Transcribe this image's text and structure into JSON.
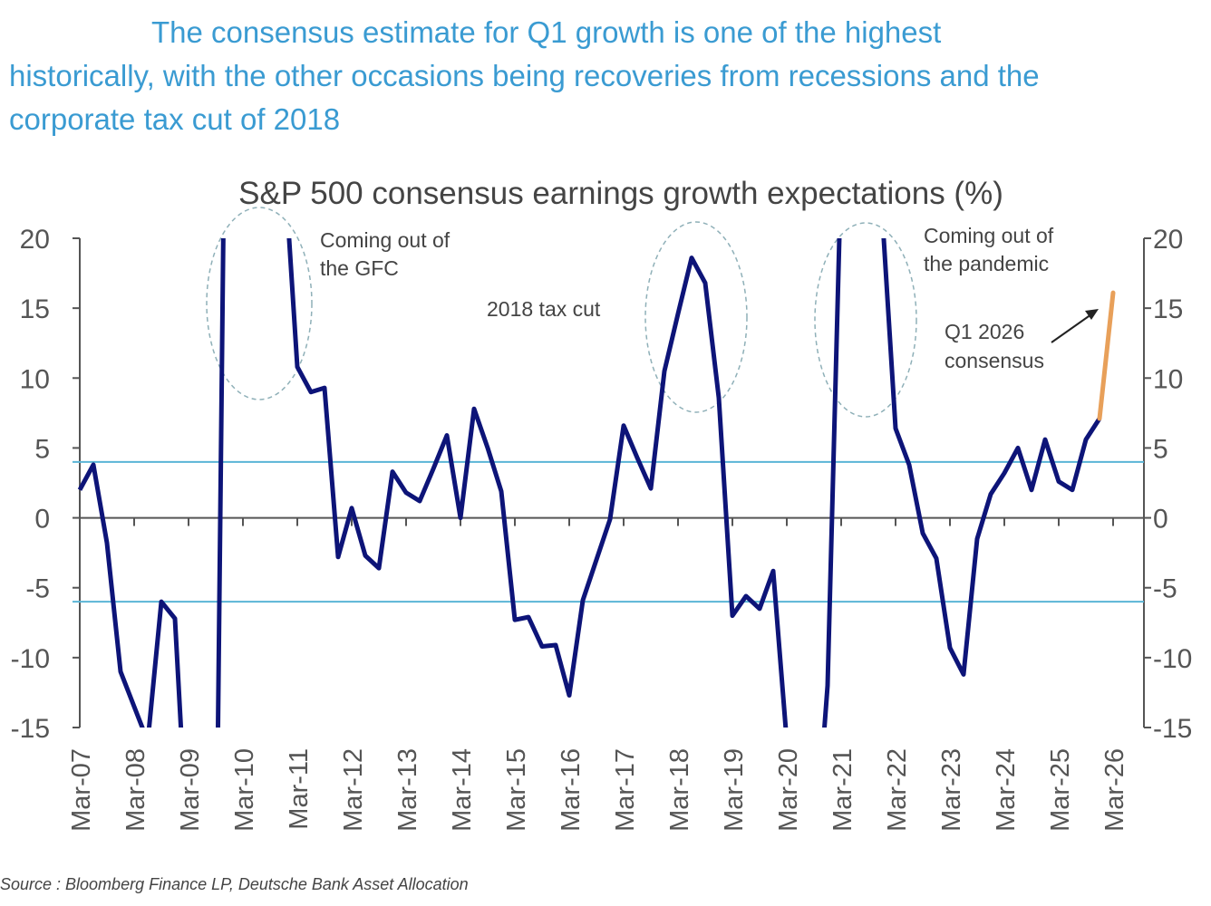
{
  "headline": [
    "The consensus estimate for Q1 growth is one of the highest",
    "historically, with the other occasions being recoveries from recessions and the",
    "corporate tax cut of 2018"
  ],
  "source": "Source : Bloomberg Finance LP, Deutsche Bank Asset Allocation",
  "chart_data": {
    "type": "line",
    "title": "S&P 500 consensus earnings growth expectations (%)",
    "xlabel": "",
    "ylabel": "",
    "ylim": [
      -15,
      20
    ],
    "yticks": [
      "20",
      "15",
      "10",
      "5",
      "0",
      "-5",
      "-10",
      "-15"
    ],
    "ytick_values": [
      20,
      15,
      10,
      5,
      0,
      -5,
      -10,
      -15
    ],
    "right_axis": true,
    "grid": false,
    "xtick_labels": [
      "Mar-07",
      "Mar-08",
      "Mar-09",
      "Mar-10",
      "Mar-11",
      "Mar-12",
      "Mar-13",
      "Mar-14",
      "Mar-15",
      "Mar-16",
      "Mar-17",
      "Mar-18",
      "Mar-19",
      "Mar-20",
      "Mar-21",
      "Mar-22",
      "Mar-23",
      "Mar-24",
      "Mar-25",
      "Mar-26"
    ],
    "x": [
      "Mar-07",
      "Jun-07",
      "Sep-07",
      "Dec-07",
      "Mar-08",
      "Jun-08",
      "Sep-08",
      "Dec-08",
      "Mar-09",
      "Jun-09",
      "Sep-09",
      "Dec-09",
      "Mar-10",
      "Jun-10",
      "Sep-10",
      "Dec-10",
      "Mar-11",
      "Jun-11",
      "Sep-11",
      "Dec-11",
      "Mar-12",
      "Jun-12",
      "Sep-12",
      "Dec-12",
      "Mar-13",
      "Jun-13",
      "Sep-13",
      "Dec-13",
      "Mar-14",
      "Jun-14",
      "Sep-14",
      "Dec-14",
      "Mar-15",
      "Jun-15",
      "Sep-15",
      "Dec-15",
      "Mar-16",
      "Jun-16",
      "Sep-16",
      "Dec-16",
      "Mar-17",
      "Jun-17",
      "Sep-17",
      "Dec-17",
      "Mar-18",
      "Jun-18",
      "Sep-18",
      "Dec-18",
      "Mar-19",
      "Jun-19",
      "Sep-19",
      "Dec-19",
      "Mar-20",
      "Jun-20",
      "Sep-20",
      "Dec-20",
      "Mar-21",
      "Jun-21",
      "Sep-21",
      "Dec-21",
      "Mar-22",
      "Jun-22",
      "Sep-22",
      "Dec-22",
      "Mar-23",
      "Jun-23",
      "Sep-23",
      "Dec-23",
      "Mar-24",
      "Jun-24",
      "Sep-24",
      "Dec-24",
      "Mar-25",
      "Jun-25",
      "Sep-25",
      "Dec-25"
    ],
    "series": [
      {
        "color": "#0d1478",
        "values": [
          2.0,
          3.8,
          -1.8,
          -11,
          -13.5,
          -16,
          -6.0,
          -7.2,
          -25,
          -30,
          -30,
          60,
          80,
          70,
          50,
          26,
          10.8,
          9.0,
          9.3,
          -2.8,
          0.7,
          -2.7,
          -3.6,
          3.3,
          1.8,
          1.2,
          3.5,
          5.9,
          0,
          7.8,
          5.0,
          1.9,
          -7.3,
          -7.1,
          -9.2,
          -9.1,
          -12.7,
          -5.9,
          -3.0,
          -0.1,
          6.6,
          4.3,
          2.1,
          10.5,
          14.6,
          18.6,
          16.8,
          8.6,
          -7.0,
          -5.6,
          -6.5,
          -3.8,
          -16,
          -30,
          -25,
          -12,
          25,
          40,
          30,
          22,
          6.4,
          3.8,
          -1.1,
          -2.9,
          -9.3,
          -11.2,
          -1.5,
          1.7,
          3.2,
          5.0,
          2.0,
          5.6,
          2.6,
          2.0,
          5.6,
          7.1
        ]
      }
    ],
    "consensus": {
      "color": "#e8a05a",
      "x": [
        "Dec-25",
        "Mar-26"
      ],
      "y": [
        7.1,
        16.1
      ]
    },
    "reference_lines": {
      "color": "#5ab4d6",
      "values": [
        4.0,
        -6.0
      ]
    },
    "annotations": [
      {
        "lines": [
          "Coming out of",
          "the GFC"
        ]
      },
      {
        "lines": [
          "2018 tax cut"
        ]
      },
      {
        "lines": [
          "Coming out of",
          "the pandemic"
        ]
      },
      {
        "lines": [
          "Q1 2026",
          "consensus"
        ]
      }
    ]
  }
}
